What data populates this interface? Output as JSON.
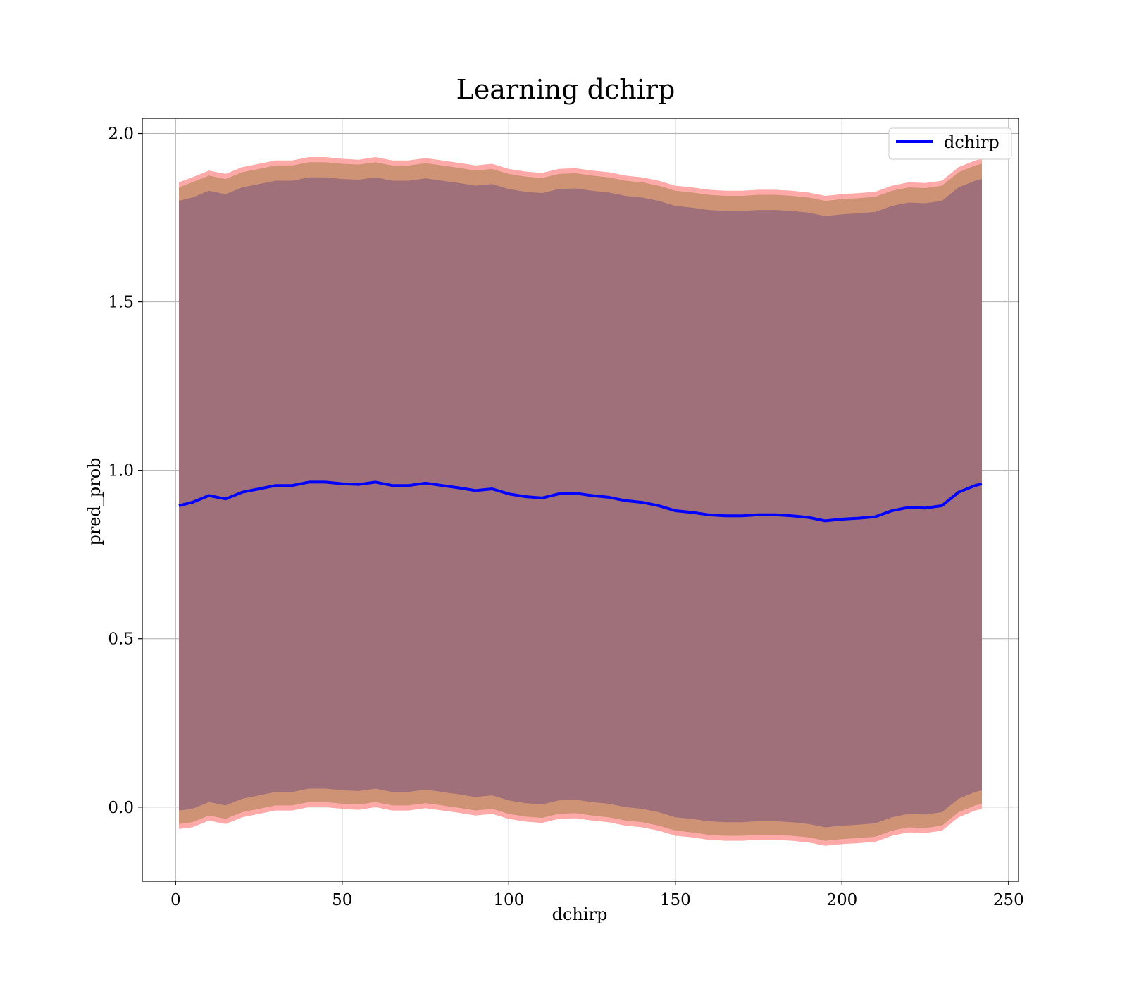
{
  "chart_data": {
    "type": "area",
    "title": "Learning dchirp",
    "xlabel": "dchirp",
    "ylabel": "pred_prob",
    "xlim": [
      -10,
      253
    ],
    "ylim": [
      -0.22,
      2.045
    ],
    "xticks": [
      0,
      50,
      100,
      150,
      200,
      250
    ],
    "yticks": [
      0.0,
      0.5,
      1.0,
      1.5,
      2.0
    ],
    "xtick_labels": [
      "0",
      "50",
      "100",
      "150",
      "200",
      "250"
    ],
    "ytick_labels": [
      "0.0",
      "0.5",
      "1.0",
      "1.5",
      "2.0"
    ],
    "grid": true,
    "legend": {
      "position": "top-right",
      "entries": [
        "dchirp"
      ]
    },
    "colors": {
      "line": "#0000ff",
      "band_outer": "#ff9a9a",
      "band_middle": "#c9906f",
      "band_inner": "#a0707a"
    },
    "x": [
      1,
      5,
      10,
      15,
      20,
      25,
      30,
      35,
      40,
      45,
      50,
      55,
      60,
      65,
      70,
      75,
      80,
      85,
      90,
      95,
      100,
      105,
      110,
      115,
      120,
      125,
      130,
      135,
      140,
      145,
      150,
      155,
      160,
      165,
      170,
      175,
      180,
      185,
      190,
      195,
      200,
      205,
      210,
      215,
      220,
      225,
      230,
      235,
      240,
      242
    ],
    "series": [
      {
        "name": "dchirp",
        "kind": "line",
        "values": [
          0.895,
          0.905,
          0.925,
          0.915,
          0.935,
          0.945,
          0.955,
          0.955,
          0.965,
          0.965,
          0.96,
          0.958,
          0.965,
          0.955,
          0.955,
          0.962,
          0.955,
          0.948,
          0.94,
          0.945,
          0.93,
          0.922,
          0.918,
          0.93,
          0.932,
          0.925,
          0.92,
          0.91,
          0.905,
          0.895,
          0.88,
          0.875,
          0.868,
          0.865,
          0.865,
          0.868,
          0.868,
          0.865,
          0.86,
          0.85,
          0.855,
          0.858,
          0.862,
          0.88,
          0.89,
          0.888,
          0.895,
          0.935,
          0.955,
          0.96
        ]
      }
    ],
    "bands": [
      {
        "kind": "outer",
        "upper": [
          1.855,
          1.87,
          1.89,
          1.88,
          1.9,
          1.91,
          1.92,
          1.92,
          1.93,
          1.93,
          1.925,
          1.922,
          1.93,
          1.92,
          1.92,
          1.927,
          1.92,
          1.913,
          1.905,
          1.91,
          1.895,
          1.887,
          1.883,
          1.895,
          1.897,
          1.89,
          1.885,
          1.875,
          1.87,
          1.86,
          1.845,
          1.84,
          1.833,
          1.83,
          1.83,
          1.833,
          1.833,
          1.83,
          1.825,
          1.815,
          1.82,
          1.823,
          1.827,
          1.845,
          1.855,
          1.853,
          1.86,
          1.9,
          1.92,
          1.925
        ],
        "lower": [
          -0.065,
          -0.06,
          -0.04,
          -0.05,
          -0.03,
          -0.02,
          -0.01,
          -0.01,
          0.0,
          0.0,
          -0.005,
          -0.008,
          0.0,
          -0.01,
          -0.01,
          -0.003,
          -0.01,
          -0.017,
          -0.025,
          -0.02,
          -0.035,
          -0.043,
          -0.047,
          -0.035,
          -0.033,
          -0.04,
          -0.045,
          -0.055,
          -0.06,
          -0.07,
          -0.085,
          -0.09,
          -0.097,
          -0.1,
          -0.1,
          -0.097,
          -0.097,
          -0.1,
          -0.105,
          -0.115,
          -0.11,
          -0.107,
          -0.103,
          -0.085,
          -0.075,
          -0.077,
          -0.07,
          -0.03,
          -0.01,
          -0.005
        ]
      },
      {
        "kind": "middle",
        "upper": [
          1.84,
          1.855,
          1.875,
          1.865,
          1.885,
          1.895,
          1.905,
          1.905,
          1.915,
          1.915,
          1.91,
          1.908,
          1.915,
          1.905,
          1.905,
          1.912,
          1.905,
          1.898,
          1.89,
          1.895,
          1.88,
          1.872,
          1.868,
          1.88,
          1.882,
          1.875,
          1.87,
          1.86,
          1.855,
          1.845,
          1.83,
          1.825,
          1.818,
          1.815,
          1.815,
          1.818,
          1.818,
          1.815,
          1.81,
          1.8,
          1.805,
          1.808,
          1.812,
          1.83,
          1.84,
          1.838,
          1.845,
          1.885,
          1.905,
          1.91
        ],
        "lower": [
          -0.05,
          -0.045,
          -0.025,
          -0.035,
          -0.015,
          -0.005,
          0.005,
          0.005,
          0.015,
          0.015,
          0.01,
          0.008,
          0.015,
          0.005,
          0.005,
          0.012,
          0.005,
          -0.002,
          -0.01,
          -0.005,
          -0.02,
          -0.028,
          -0.032,
          -0.02,
          -0.018,
          -0.025,
          -0.03,
          -0.04,
          -0.045,
          -0.055,
          -0.07,
          -0.075,
          -0.082,
          -0.085,
          -0.085,
          -0.082,
          -0.082,
          -0.085,
          -0.09,
          -0.1,
          -0.095,
          -0.092,
          -0.088,
          -0.07,
          -0.06,
          -0.062,
          -0.055,
          -0.015,
          0.005,
          0.01
        ]
      },
      {
        "kind": "inner",
        "upper": [
          1.8,
          1.81,
          1.83,
          1.82,
          1.84,
          1.85,
          1.86,
          1.86,
          1.87,
          1.87,
          1.865,
          1.863,
          1.87,
          1.86,
          1.86,
          1.867,
          1.86,
          1.853,
          1.845,
          1.85,
          1.835,
          1.827,
          1.823,
          1.835,
          1.837,
          1.83,
          1.825,
          1.815,
          1.81,
          1.8,
          1.785,
          1.78,
          1.773,
          1.77,
          1.77,
          1.773,
          1.773,
          1.77,
          1.765,
          1.755,
          1.76,
          1.763,
          1.767,
          1.785,
          1.795,
          1.793,
          1.8,
          1.84,
          1.86,
          1.865
        ],
        "lower": [
          -0.01,
          -0.005,
          0.015,
          0.005,
          0.025,
          0.035,
          0.045,
          0.045,
          0.055,
          0.055,
          0.05,
          0.048,
          0.055,
          0.045,
          0.045,
          0.052,
          0.045,
          0.038,
          0.03,
          0.035,
          0.02,
          0.012,
          0.008,
          0.02,
          0.022,
          0.015,
          0.01,
          0.0,
          -0.005,
          -0.015,
          -0.03,
          -0.035,
          -0.042,
          -0.045,
          -0.045,
          -0.042,
          -0.042,
          -0.045,
          -0.05,
          -0.06,
          -0.055,
          -0.052,
          -0.048,
          -0.03,
          -0.02,
          -0.022,
          -0.015,
          0.025,
          0.045,
          0.05
        ]
      }
    ]
  }
}
